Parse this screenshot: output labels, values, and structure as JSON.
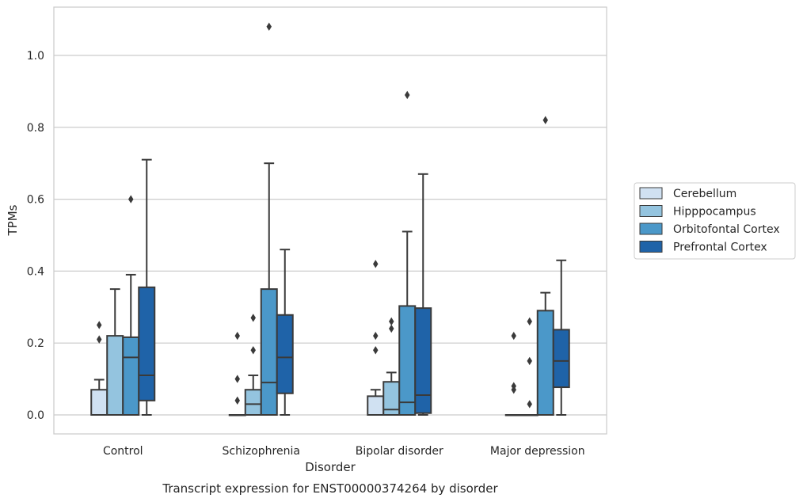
{
  "chart_data": {
    "type": "box",
    "caption": "Transcript expression for ENST00000374264 by disorder",
    "xlabel": "Disorder",
    "ylabel": "TPMs",
    "ylim": [
      -0.05,
      1.14
    ],
    "yticks": [
      "0.0",
      "0.2",
      "0.4",
      "0.6",
      "0.8",
      "1.0"
    ],
    "grid": true,
    "legend_position": "right",
    "categories": [
      "Control",
      "Schizophrenia",
      "Bipolar disorder",
      "Major depression"
    ],
    "series": [
      {
        "name": "Cerebellum",
        "color": "#d0e1f2",
        "boxes": [
          {
            "q1": 0.0,
            "median": 0.0,
            "q3": 0.07,
            "whislo": 0.0,
            "whishi": 0.098,
            "fliers": [
              0.21,
              0.25
            ]
          },
          {
            "q1": 0.0,
            "median": 0.0,
            "q3": 0.0,
            "whislo": 0.0,
            "whishi": 0.0,
            "fliers": [
              0.04,
              0.1,
              0.22
            ]
          },
          {
            "q1": 0.0,
            "median": 0.0,
            "q3": 0.052,
            "whislo": 0.0,
            "whishi": 0.07,
            "fliers": [
              0.18,
              0.22,
              0.42
            ]
          },
          {
            "q1": 0.0,
            "median": 0.0,
            "q3": 0.0,
            "whislo": 0.0,
            "whishi": 0.0,
            "fliers": [
              0.07,
              0.08,
              0.22
            ]
          }
        ]
      },
      {
        "name": "Hipppocampus",
        "color": "#94c4df",
        "boxes": [
          {
            "q1": 0.0,
            "median": 0.0,
            "q3": 0.22,
            "whislo": 0.0,
            "whishi": 0.35,
            "fliers": []
          },
          {
            "q1": 0.0,
            "median": 0.03,
            "q3": 0.07,
            "whislo": 0.0,
            "whishi": 0.11,
            "fliers": [
              0.18,
              0.27
            ]
          },
          {
            "q1": 0.0,
            "median": 0.015,
            "q3": 0.092,
            "whislo": 0.0,
            "whishi": 0.118,
            "fliers": [
              0.24,
              0.26
            ]
          },
          {
            "q1": 0.0,
            "median": 0.0,
            "q3": 0.0,
            "whislo": 0.0,
            "whishi": 0.0,
            "fliers": [
              0.03,
              0.15,
              0.26
            ]
          }
        ]
      },
      {
        "name": "Orbitofontal Cortex",
        "color": "#4b98c9",
        "boxes": [
          {
            "q1": 0.0,
            "median": 0.16,
            "q3": 0.216,
            "whislo": 0.0,
            "whishi": 0.39,
            "fliers": [
              0.6
            ]
          },
          {
            "q1": 0.0,
            "median": 0.09,
            "q3": 0.35,
            "whislo": 0.0,
            "whishi": 0.7,
            "fliers": [
              1.08
            ]
          },
          {
            "q1": 0.0,
            "median": 0.035,
            "q3": 0.303,
            "whislo": 0.0,
            "whishi": 0.51,
            "fliers": [
              0.89
            ]
          },
          {
            "q1": 0.0,
            "median": 0.0,
            "q3": 0.29,
            "whislo": 0.0,
            "whishi": 0.34,
            "fliers": [
              0.82
            ]
          }
        ]
      },
      {
        "name": "Prefrontal Cortex",
        "color": "#1f63a8",
        "boxes": [
          {
            "q1": 0.04,
            "median": 0.11,
            "q3": 0.355,
            "whislo": 0.0,
            "whishi": 0.71,
            "fliers": []
          },
          {
            "q1": 0.06,
            "median": 0.16,
            "q3": 0.278,
            "whislo": 0.0,
            "whishi": 0.46,
            "fliers": []
          },
          {
            "q1": 0.005,
            "median": 0.055,
            "q3": 0.297,
            "whislo": 0.0,
            "whishi": 0.67,
            "fliers": []
          },
          {
            "q1": 0.077,
            "median": 0.15,
            "q3": 0.237,
            "whislo": 0.0,
            "whishi": 0.43,
            "fliers": []
          }
        ]
      }
    ]
  }
}
